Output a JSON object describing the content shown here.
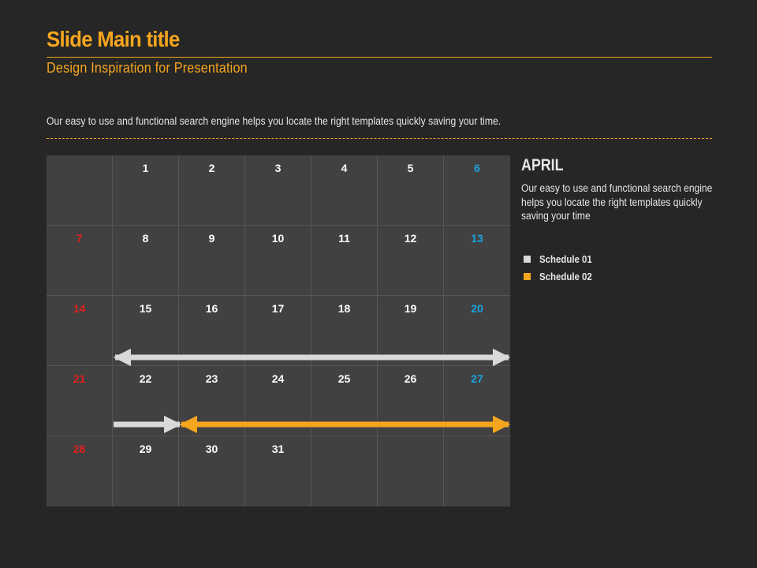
{
  "header": {
    "title": "Slide Main title",
    "subtitle": "Design Inspiration for Presentation",
    "description": "Our easy to use and functional search engine helps you locate the right templates quickly saving your time."
  },
  "calendar": {
    "month": "APRIL",
    "description": "Our easy to use and functional search engine helps you locate the right templates quickly saving your time",
    "days": [
      {
        "label": "",
        "type": "normal"
      },
      {
        "label": "1",
        "type": "normal"
      },
      {
        "label": "2",
        "type": "normal"
      },
      {
        "label": "3",
        "type": "normal"
      },
      {
        "label": "4",
        "type": "normal"
      },
      {
        "label": "5",
        "type": "normal"
      },
      {
        "label": "6",
        "type": "sat"
      },
      {
        "label": "7",
        "type": "sun"
      },
      {
        "label": "8",
        "type": "normal"
      },
      {
        "label": "9",
        "type": "normal"
      },
      {
        "label": "10",
        "type": "normal"
      },
      {
        "label": "11",
        "type": "normal"
      },
      {
        "label": "12",
        "type": "normal"
      },
      {
        "label": "13",
        "type": "sat"
      },
      {
        "label": "14",
        "type": "sun"
      },
      {
        "label": "15",
        "type": "normal"
      },
      {
        "label": "16",
        "type": "normal"
      },
      {
        "label": "17",
        "type": "normal"
      },
      {
        "label": "18",
        "type": "normal"
      },
      {
        "label": "19",
        "type": "normal"
      },
      {
        "label": "20",
        "type": "sat"
      },
      {
        "label": "21",
        "type": "sun"
      },
      {
        "label": "22",
        "type": "normal"
      },
      {
        "label": "23",
        "type": "normal"
      },
      {
        "label": "24",
        "type": "normal"
      },
      {
        "label": "25",
        "type": "normal"
      },
      {
        "label": "26",
        "type": "normal"
      },
      {
        "label": "27",
        "type": "sat"
      },
      {
        "label": "28",
        "type": "sun"
      },
      {
        "label": "29",
        "type": "normal"
      },
      {
        "label": "30",
        "type": "normal"
      },
      {
        "label": "31",
        "type": "normal"
      },
      {
        "label": "",
        "type": "normal"
      },
      {
        "label": "",
        "type": "normal"
      },
      {
        "label": "",
        "type": "normal"
      }
    ]
  },
  "legend": [
    {
      "label": "Schedule 01",
      "color": "#d9d9d9"
    },
    {
      "label": "Schedule 02",
      "color": "#f5a51e"
    }
  ],
  "colors": {
    "accent": "#f5a51e",
    "sunday": "#e0201f",
    "saturday": "#1aa3e0",
    "background": "#262626",
    "calendar_bg": "#414141"
  }
}
